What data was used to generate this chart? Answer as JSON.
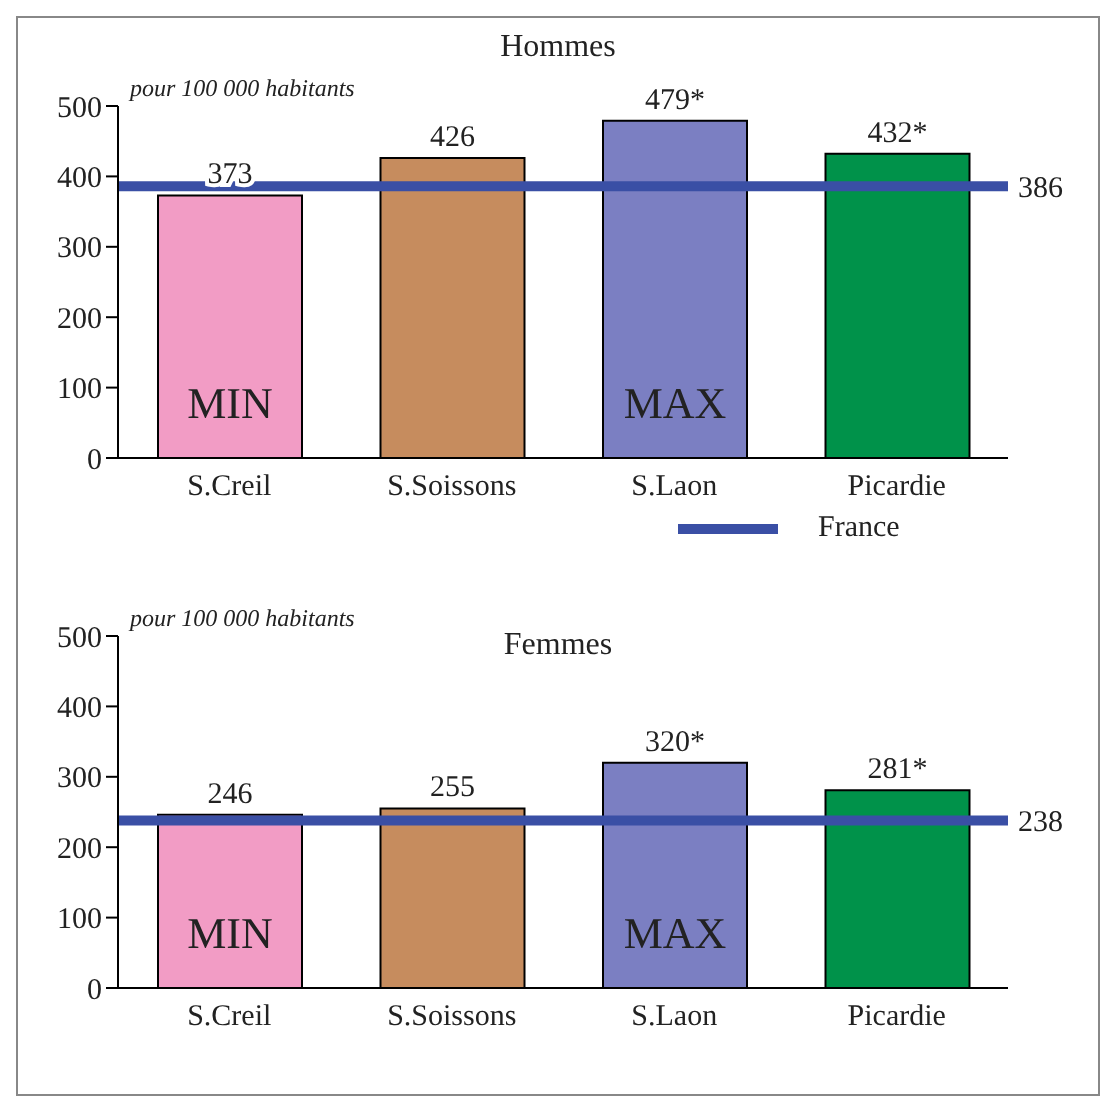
{
  "chart_data": [
    {
      "type": "bar",
      "title": "Hommes",
      "categories": [
        "S.Creil",
        "S.Soissons",
        "S.Laon",
        "Picardie"
      ],
      "values": [
        373,
        426,
        479,
        432
      ],
      "colors": [
        "#f29cc5",
        "#c68c5e",
        "#7b7fc2",
        "#00924a"
      ],
      "value_labels": [
        "373",
        "426",
        "479*",
        "432*"
      ],
      "ylim": [
        0,
        500
      ],
      "yticks": [
        0,
        100,
        200,
        300,
        400,
        500
      ],
      "ref_lines": [
        {
          "axis": "y",
          "value": 386,
          "label": "386",
          "color": "#3a4fa5"
        }
      ],
      "annotations": [
        "pour 100 000 habitants",
        "MIN",
        "MAX",
        "France"
      ]
    },
    {
      "type": "bar",
      "title": "Femmes",
      "categories": [
        "S.Creil",
        "S.Soissons",
        "S.Laon",
        "Picardie"
      ],
      "values": [
        246,
        255,
        320,
        281
      ],
      "colors": [
        "#f29cc5",
        "#c68c5e",
        "#7b7fc2",
        "#00924a"
      ],
      "value_labels": [
        "246",
        "255",
        "320*",
        "281*"
      ],
      "ylim": [
        0,
        500
      ],
      "yticks": [
        0,
        100,
        200,
        300,
        400,
        500
      ],
      "ref_lines": [
        {
          "axis": "y",
          "value": 238,
          "label": "238",
          "color": "#3a4fa5"
        }
      ],
      "annotations": [
        "pour 100 000 habitants",
        "MIN",
        "MAX"
      ]
    }
  ]
}
